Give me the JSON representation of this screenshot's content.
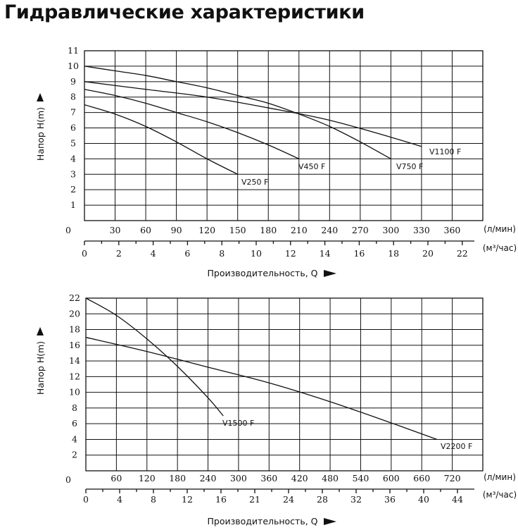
{
  "title": "Гидравлические характеристики",
  "chart_data": [
    {
      "type": "line",
      "ylabel": "Напор H(m)",
      "xlabel": "Производительность, Q",
      "x_units": "л/мин",
      "x2_units": "м³/час",
      "y_origin_label": "0",
      "ylim": [
        0,
        11
      ],
      "y_ticks": [
        "1",
        "2",
        "3",
        "4",
        "5",
        "6",
        "7",
        "8",
        "9",
        "10",
        "11"
      ],
      "xlim": [
        0,
        390
      ],
      "x_ticks": [
        "30",
        "60",
        "90",
        "120",
        "150",
        "180",
        "210",
        "240",
        "270",
        "300",
        "330",
        "360"
      ],
      "x2_ticks": [
        "0",
        "2",
        "4",
        "6",
        "8",
        "10",
        "12",
        "14",
        "16",
        "18",
        "20",
        "22"
      ],
      "grid": true,
      "series": [
        {
          "name": "V250 F",
          "x": [
            0,
            30,
            60,
            90,
            120,
            150
          ],
          "y": [
            7.5,
            6.9,
            6.1,
            5.1,
            4.0,
            3.0
          ]
        },
        {
          "name": "V450 F",
          "x": [
            0,
            30,
            60,
            90,
            120,
            150,
            180,
            210
          ],
          "y": [
            8.5,
            8.1,
            7.6,
            7.0,
            6.4,
            5.7,
            4.9,
            4.0
          ]
        },
        {
          "name": "V750 F",
          "x": [
            0,
            30,
            60,
            90,
            120,
            150,
            180,
            210,
            240,
            270,
            300
          ],
          "y": [
            10.0,
            9.7,
            9.4,
            9.0,
            8.6,
            8.1,
            7.6,
            6.9,
            6.1,
            5.1,
            4.0
          ]
        },
        {
          "name": "V1100 F",
          "x": [
            0,
            60,
            120,
            180,
            240,
            300,
            330
          ],
          "y": [
            9.0,
            8.5,
            8.0,
            7.3,
            6.5,
            5.4,
            4.8
          ]
        }
      ]
    },
    {
      "type": "line",
      "ylabel": "Напор H(m)",
      "xlabel": "Производительность, Q",
      "x_units": "л/мин",
      "x2_units": "м³/час",
      "y_origin_label": "0",
      "ylim": [
        0,
        22
      ],
      "y_ticks": [
        "2",
        "4",
        "6",
        "8",
        "10",
        "12",
        "14",
        "16",
        "18",
        "20",
        "22"
      ],
      "xlim": [
        0,
        780
      ],
      "x_ticks": [
        "60",
        "120",
        "180",
        "240",
        "300",
        "360",
        "420",
        "480",
        "540",
        "600",
        "660",
        "720"
      ],
      "x2_ticks": [
        "0",
        "4",
        "8",
        "12",
        "16",
        "21",
        "24",
        "28",
        "32",
        "36",
        "40",
        "44"
      ],
      "grid": true,
      "series": [
        {
          "name": "V1500 F",
          "x": [
            0,
            60,
            120,
            180,
            240,
            270
          ],
          "y": [
            22.0,
            19.8,
            16.8,
            13.3,
            9.3,
            7.0
          ]
        },
        {
          "name": "V2200 F",
          "x": [
            0,
            120,
            240,
            360,
            480,
            600,
            690
          ],
          "y": [
            17.0,
            15.2,
            13.2,
            11.2,
            8.8,
            6.1,
            4.0
          ]
        }
      ]
    }
  ]
}
